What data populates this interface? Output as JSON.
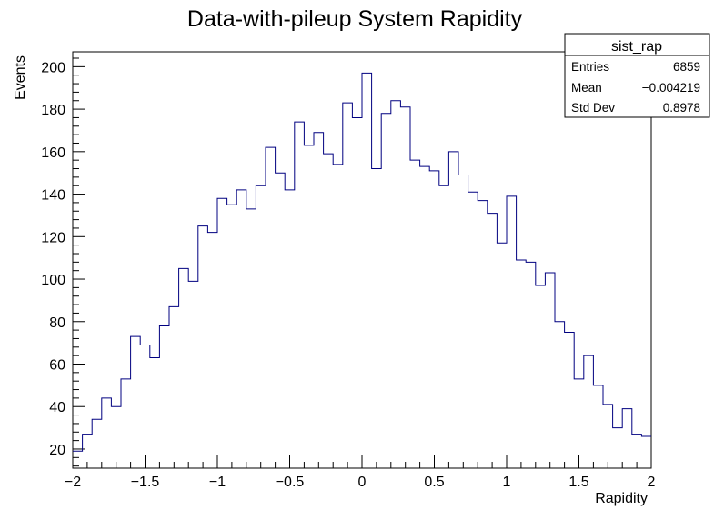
{
  "chart_data": {
    "type": "bar",
    "title": "Data-with-pileup System Rapidity",
    "xlabel": "Rapidity",
    "ylabel": "Events",
    "xlim": [
      -2,
      2
    ],
    "ylim": [
      11,
      207
    ],
    "bins": 60,
    "x_ticks": [
      -2,
      -1.5,
      -1,
      -0.5,
      0,
      0.5,
      1,
      1.5,
      2
    ],
    "x_tick_labels": [
      "−2",
      "−1.5",
      "−1",
      "−0.5",
      "0",
      "0.5",
      "1",
      "1.5",
      "2"
    ],
    "y_ticks": [
      20,
      40,
      60,
      80,
      100,
      120,
      140,
      160,
      180,
      200
    ],
    "values": [
      19,
      27,
      34,
      44,
      40,
      53,
      73,
      69,
      63,
      78,
      87,
      105,
      99,
      125,
      122,
      138,
      135,
      142,
      133,
      144,
      162,
      150,
      142,
      174,
      163,
      169,
      159,
      154,
      183,
      176,
      197,
      152,
      178,
      184,
      181,
      156,
      153,
      151,
      144,
      160,
      149,
      141,
      137,
      131,
      117,
      139,
      109,
      108,
      97,
      103,
      80,
      75,
      53,
      64,
      50,
      41,
      30,
      39,
      27,
      26
    ],
    "line_color": "#000080",
    "grid": false,
    "stats_box": {
      "title": "sist_rap",
      "placement": "top-right",
      "rows": [
        {
          "label": "Entries",
          "value": "6859"
        },
        {
          "label": "Mean",
          "value": "−0.004219"
        },
        {
          "label": "Std Dev",
          "value": "0.8978"
        }
      ]
    }
  }
}
